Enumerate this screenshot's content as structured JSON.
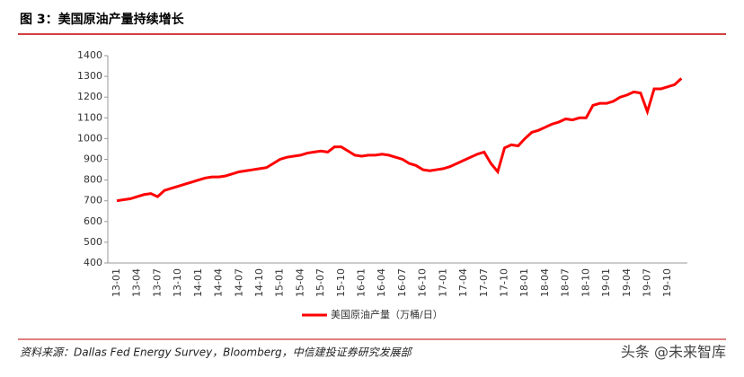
{
  "chart_data": {
    "type": "line",
    "title": "图 3：美国原油产量持续增长",
    "source": "资料来源：Dallas Fed Energy Survey，Bloomberg，中信建投证券研究发展部",
    "watermark": "头条 @未来智库",
    "categories": [
      "13-01",
      null,
      null,
      "13-04",
      null,
      null,
      "13-07",
      null,
      null,
      "13-10",
      null,
      null,
      "14-01",
      null,
      null,
      "14-04",
      null,
      null,
      "14-07",
      null,
      null,
      "14-10",
      null,
      null,
      "15-01",
      null,
      null,
      "15-04",
      null,
      null,
      "15-07",
      null,
      null,
      "15-10",
      null,
      null,
      "16-01",
      null,
      null,
      "16-04",
      null,
      null,
      "16-07",
      null,
      null,
      "16-10",
      null,
      null,
      "17-01",
      null,
      null,
      "17-04",
      null,
      null,
      "17-07",
      null,
      null,
      "17-10",
      null,
      null,
      "18-01",
      null,
      null,
      "18-04",
      null,
      null,
      "18-07",
      null,
      null,
      "18-10",
      null,
      null,
      "19-01",
      null,
      null,
      "19-04",
      null,
      null,
      "19-07",
      null,
      null,
      "19-10",
      null,
      null
    ],
    "series": [
      {
        "name": "美国原油产量（万桶/日）",
        "color": "#ff0000",
        "values": [
          700,
          705,
          710,
          720,
          730,
          735,
          720,
          750,
          760,
          770,
          780,
          790,
          800,
          810,
          815,
          815,
          820,
          830,
          840,
          845,
          850,
          855,
          860,
          880,
          900,
          910,
          915,
          920,
          930,
          935,
          940,
          935,
          960,
          960,
          940,
          920,
          915,
          920,
          920,
          925,
          920,
          910,
          900,
          880,
          870,
          850,
          845,
          850,
          855,
          865,
          880,
          895,
          910,
          925,
          935,
          880,
          840,
          955,
          970,
          965,
          1000,
          1030,
          1040,
          1055,
          1070,
          1080,
          1095,
          1090,
          1100,
          1100,
          1160,
          1170,
          1170,
          1180,
          1200,
          1210,
          1225,
          1220,
          1130,
          1240,
          1240,
          1250,
          1260,
          1290
        ]
      }
    ],
    "ylim": [
      400,
      1400
    ],
    "yticks": [
      400,
      500,
      600,
      700,
      800,
      900,
      1000,
      1100,
      1200,
      1300,
      1400
    ]
  }
}
